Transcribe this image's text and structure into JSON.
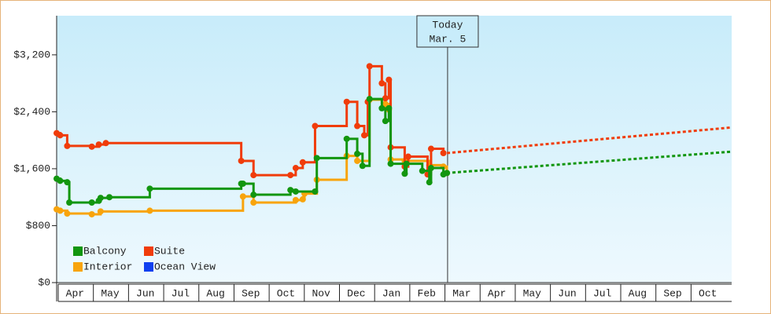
{
  "chart_data": {
    "type": "step",
    "categories": [
      "Apr",
      "May",
      "Jun",
      "Jul",
      "Aug",
      "Sep",
      "Oct",
      "Nov",
      "Dec",
      "Jan",
      "Feb",
      "Mar",
      "Apr",
      "May",
      "Jun",
      "Jul",
      "Aug",
      "Sep",
      "Oct"
    ],
    "xlim": [
      0,
      19.2
    ],
    "ylim": [
      0,
      3750
    ],
    "yticks": [
      {
        "value": 0,
        "label": "$0"
      },
      {
        "value": 800,
        "label": "$800"
      },
      {
        "value": 1600,
        "label": "$1,600"
      },
      {
        "value": 2400,
        "label": "$2,400"
      },
      {
        "value": 3200,
        "label": "$3,200"
      }
    ],
    "legend": "lower left",
    "today": {
      "x": 11.12,
      "label": "Today",
      "date": "Mar. 5"
    },
    "series": [
      {
        "name": "Balcony",
        "color": "#12960f",
        "x": [
          0,
          0.1,
          0.3,
          0.36,
          1.0,
          1.2,
          1.25,
          1.5,
          2.65,
          5.25,
          5.3,
          5.6,
          6.65,
          6.8,
          7.35,
          7.4,
          8.25,
          8.55,
          8.7,
          8.9,
          9.25,
          9.35,
          9.45,
          9.5,
          9.9,
          9.95,
          10.4,
          10.6,
          10.65,
          11.0,
          11.1
        ],
        "values": [
          1460,
          1430,
          1410,
          1125,
          1125,
          1150,
          1190,
          1200,
          1320,
          1390,
          1390,
          1235,
          1300,
          1280,
          1280,
          1750,
          2020,
          1810,
          1640,
          2580,
          2450,
          2270,
          2450,
          1670,
          1530,
          1670,
          1570,
          1410,
          1610,
          1520,
          1540
        ],
        "forecast": {
          "x": [
            11.1,
            19.2
          ],
          "values": [
            1540,
            1840
          ]
        }
      },
      {
        "name": "Suite",
        "color": "#f03c0a",
        "x": [
          0,
          0.1,
          0.3,
          1.0,
          1.2,
          1.4,
          5.25,
          5.6,
          6.65,
          6.8,
          7.0,
          7.35,
          8.25,
          8.55,
          8.75,
          8.85,
          8.9,
          9.25,
          9.35,
          9.45,
          9.5,
          9.9,
          10.0,
          10.55,
          10.65,
          11.0
        ],
        "values": [
          2100,
          2070,
          1920,
          1910,
          1940,
          1960,
          1710,
          1510,
          1510,
          1610,
          1690,
          2200,
          2540,
          2200,
          2070,
          2540,
          3040,
          2800,
          2590,
          2850,
          1900,
          1630,
          1770,
          1520,
          1880,
          1820
        ],
        "forecast": {
          "x": [
            11.1,
            19.2
          ],
          "values": [
            1820,
            2180
          ]
        }
      },
      {
        "name": "Interior",
        "color": "#f8a40c",
        "x": [
          0,
          0.1,
          0.3,
          1.0,
          1.25,
          2.65,
          5.3,
          5.6,
          6.8,
          7.0,
          7.05,
          7.4,
          8.25,
          8.55,
          8.9,
          9.35,
          9.45,
          9.5,
          9.9,
          10.6,
          11.0,
          11.1
        ],
        "values": [
          1030,
          1010,
          970,
          960,
          1000,
          1010,
          1210,
          1125,
          1160,
          1170,
          1250,
          1445,
          1780,
          1710,
          2570,
          2510,
          2430,
          1730,
          1710,
          1650,
          1630,
          1540
        ]
      },
      {
        "name": "Ocean View",
        "color": "#1040f0",
        "x": [],
        "values": []
      }
    ]
  }
}
